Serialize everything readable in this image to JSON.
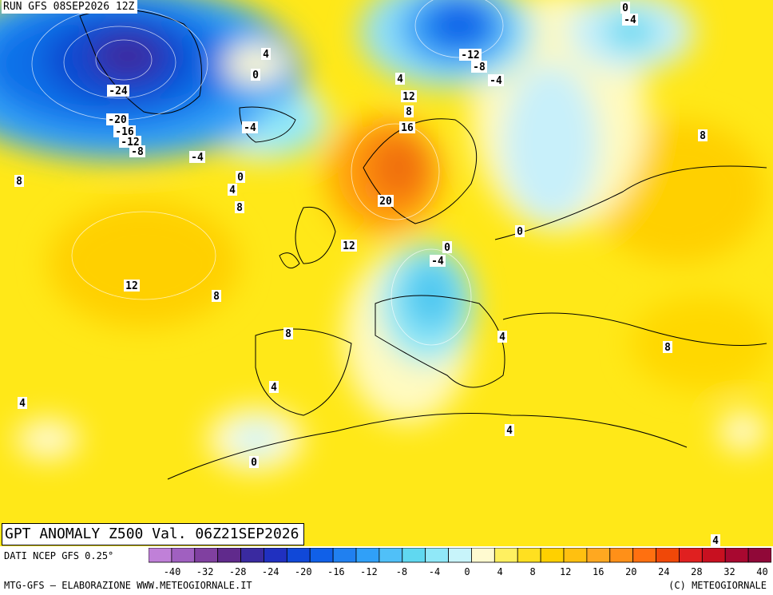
{
  "header": {
    "run_label": "RUN GFS 08SEP2026 12Z"
  },
  "map": {
    "title": "GPT ANOMALY Z500 Val. 06Z21SEP2026",
    "contour_labels": [
      "0",
      "-4",
      "-12",
      "-8",
      "-4",
      "4",
      "0",
      "4",
      "8",
      "-24",
      "12",
      "16",
      "-20",
      "-16",
      "-12",
      "-8",
      "-4",
      "-4",
      "0",
      "4",
      "8",
      "8",
      "20",
      "12",
      "0",
      "-4",
      "0",
      "8",
      "12",
      "8",
      "8",
      "4",
      "4",
      "8",
      "4",
      "0",
      "4",
      "4"
    ]
  },
  "legend": {
    "ticks": [
      "-40",
      "-32",
      "-28",
      "-24",
      "-20",
      "-16",
      "-12",
      "-8",
      "-4",
      "0",
      "4",
      "8",
      "12",
      "16",
      "20",
      "24",
      "28",
      "32",
      "40"
    ],
    "colors": [
      "#c080d8",
      "#a060c0",
      "#8040a0",
      "#602a8c",
      "#3a2aa0",
      "#2030c0",
      "#1048d8",
      "#1060e8",
      "#2080f0",
      "#30a0f8",
      "#50c0f8",
      "#60d8f0",
      "#90e8f8",
      "#c8f4fa",
      "#fffad0",
      "#fff060",
      "#ffe020",
      "#ffd000",
      "#ffc010",
      "#ffa820",
      "#ff9018",
      "#ff7010",
      "#f04808",
      "#e02020",
      "#c81020",
      "#a80830",
      "#900838"
    ]
  },
  "footer": {
    "data_source": "DATI NCEP GFS 0.25°",
    "left": "MTG-GFS — ELABORAZIONE WWW.METEOGIORNALE.IT",
    "right": "(C) METEOGIORNALE"
  }
}
